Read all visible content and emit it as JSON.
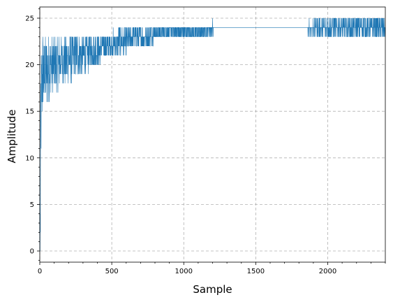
{
  "chart_data": {
    "type": "line",
    "title": "",
    "xlabel": "Sample",
    "ylabel": "Amplitude",
    "xlim": [
      0,
      2400
    ],
    "ylim": [
      -1.2,
      26.2
    ],
    "x_ticks": [
      0,
      500,
      1000,
      1500,
      2000
    ],
    "y_ticks": [
      0,
      5,
      10,
      15,
      20,
      25
    ],
    "x_minor_step": 100,
    "y_minor_step": 1,
    "grid": true,
    "legend": "none",
    "series": [
      {
        "color": "#1f77b4",
        "description_of_shape": "noisy integer signal rising from 0 to about 24",
        "x": [
          0,
          2,
          4,
          6,
          8,
          10,
          15,
          20,
          25,
          30,
          40,
          50,
          60,
          70,
          80,
          100,
          120,
          150,
          200,
          250,
          300,
          350,
          400,
          450,
          500,
          550,
          600,
          650,
          700,
          750,
          800,
          900,
          1000,
          1100,
          1200,
          1300,
          1400,
          1500,
          1600,
          1700,
          1800,
          1900,
          2000,
          2100,
          2200,
          2300,
          2399
        ],
        "y": [
          0,
          0,
          5,
          10,
          14,
          16,
          18,
          19,
          19,
          19,
          19.5,
          19.5,
          19.5,
          20,
          20,
          20,
          20,
          20.5,
          20.5,
          21,
          21,
          21.5,
          21.5,
          22,
          22,
          22.5,
          22.5,
          23,
          23,
          23,
          23.5,
          23.5,
          23.5,
          23.5,
          24,
          24,
          24,
          24,
          24,
          24,
          24,
          24,
          24,
          24,
          24,
          24,
          24
        ],
        "noise": [
          0,
          0,
          8,
          8,
          7,
          6,
          5,
          5,
          4,
          4,
          4,
          4,
          3.5,
          3.5,
          3,
          3,
          3,
          2.5,
          2.5,
          2.5,
          2,
          2,
          2,
          1.5,
          1.5,
          1.5,
          1.5,
          1.2,
          1.2,
          1,
          1,
          1,
          1,
          0.8,
          0.6,
          0.2,
          0,
          0,
          0,
          0.2,
          0.2,
          0.8,
          1,
          1,
          1,
          1,
          1
        ]
      }
    ]
  }
}
